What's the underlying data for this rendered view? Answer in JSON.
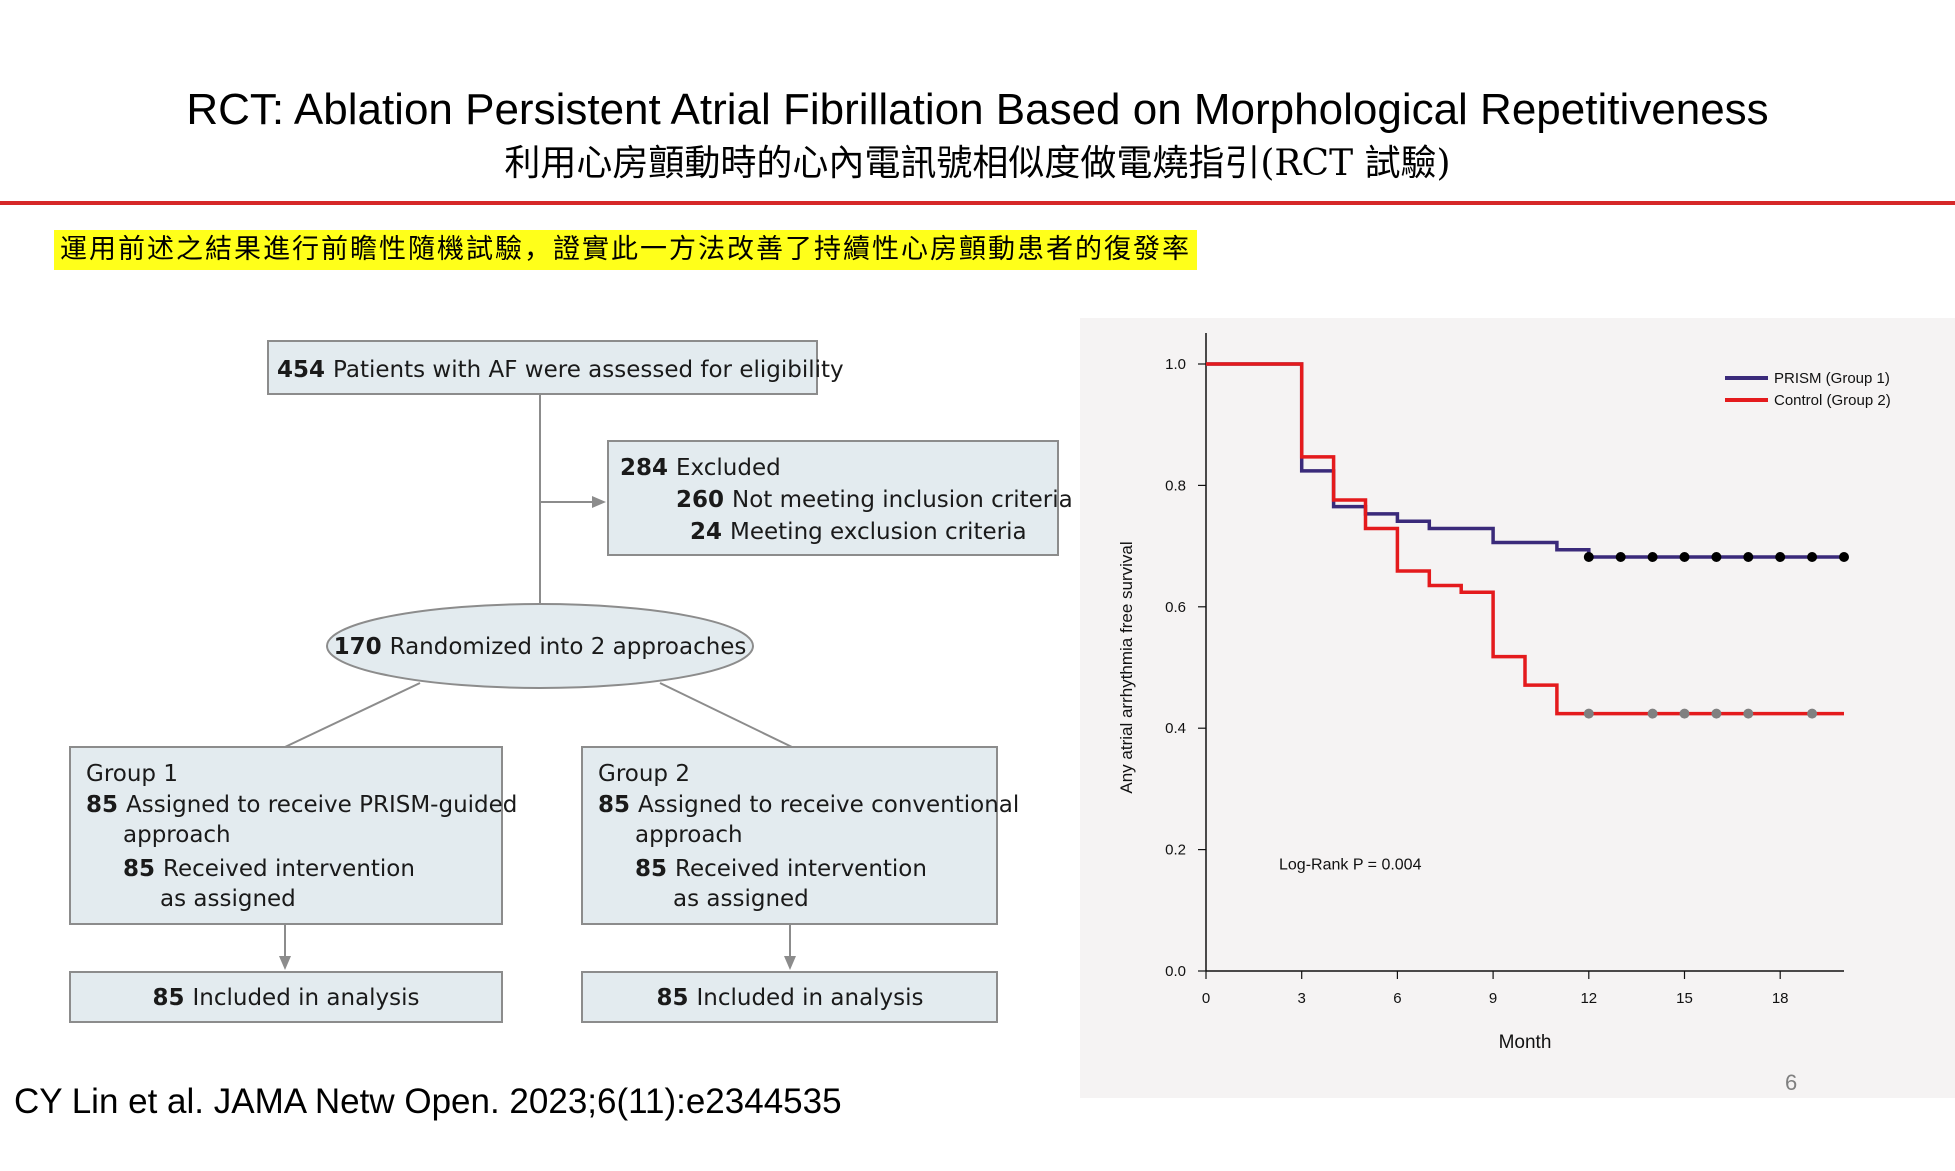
{
  "slide": {
    "title": "RCT: Ablation Persistent Atrial Fibrillation Based on Morphological Repetitiveness",
    "subtitle": "利用心房顫動時的心內電訊號相似度做電燒指引(RCT  試驗)",
    "highlight": "運用前述之結果進行前瞻性隨機試驗，證實此一方法改善了持續性心房顫動患者的復發率",
    "citation": "CY Lin et al. JAMA Netw Open. 2023;6(11):e2344535",
    "page_number": "6",
    "accent_color": "#d62728",
    "highlight_color": "#ffff1a"
  },
  "flowchart": {
    "assessed": {
      "num": "454",
      "text": "Patients with AF were assessed for eligibility"
    },
    "excluded": {
      "num": "284",
      "text": "Excluded"
    },
    "excluded_1": {
      "num": "260",
      "text": "Not meeting inclusion criteria"
    },
    "excluded_2": {
      "num": "24",
      "text": "Meeting exclusion criteria"
    },
    "randomized": {
      "num": "170",
      "text": "Randomized into 2 approaches"
    },
    "group1": {
      "title": "Group 1",
      "assigned_num": "85",
      "assigned_line1": "Assigned to receive PRISM-guided",
      "assigned_line2": "approach",
      "received_num": "85",
      "received_line1": "Received intervention",
      "received_line2": "as assigned",
      "analysis_num": "85",
      "analysis_text": "Included in analysis"
    },
    "group2": {
      "title": "Group 2",
      "assigned_num": "85",
      "assigned_line1": "Assigned to receive conventional",
      "assigned_line2": "approach",
      "received_num": "85",
      "received_line1": "Received intervention",
      "received_line2": "as assigned",
      "analysis_num": "85",
      "analysis_text": "Included in analysis"
    }
  },
  "chart_data": {
    "type": "line",
    "title": "",
    "xlabel": "Month",
    "ylabel": "Any atrial arrhythmia free survival",
    "xlim": [
      0,
      20
    ],
    "ylim": [
      0,
      1.0
    ],
    "x_ticks": [
      "0",
      "3",
      "6",
      "9",
      "12",
      "15",
      "18"
    ],
    "y_ticks": [
      "0.0",
      "0.2",
      "0.4",
      "0.6",
      "0.8",
      "1.0"
    ],
    "annotation": "Log-Rank P = 0.004",
    "grid": false,
    "legend_position": "top-right",
    "series": [
      {
        "name": "PRISM (Group 1)",
        "color": "#3a2a7a",
        "step_points": [
          [
            0,
            1.0
          ],
          [
            3,
            1.0
          ],
          [
            3,
            0.824
          ],
          [
            4,
            0.824
          ],
          [
            4,
            0.765
          ],
          [
            5,
            0.765
          ],
          [
            5,
            0.753
          ],
          [
            6,
            0.753
          ],
          [
            6,
            0.741
          ],
          [
            7,
            0.741
          ],
          [
            7,
            0.729
          ],
          [
            9,
            0.729
          ],
          [
            9,
            0.706
          ],
          [
            11,
            0.706
          ],
          [
            11,
            0.694
          ],
          [
            12,
            0.694
          ],
          [
            12,
            0.682
          ],
          [
            20,
            0.682
          ]
        ],
        "censor_x": [
          12,
          13,
          14,
          15,
          16,
          17,
          18,
          19,
          20
        ],
        "censor_y": 0.682,
        "censor_color": "#000000"
      },
      {
        "name": "Control (Group 2)",
        "color": "#e41a1c",
        "step_points": [
          [
            0,
            1.0
          ],
          [
            3,
            1.0
          ],
          [
            3,
            0.847
          ],
          [
            4,
            0.847
          ],
          [
            4,
            0.776
          ],
          [
            5,
            0.776
          ],
          [
            5,
            0.729
          ],
          [
            6,
            0.729
          ],
          [
            6,
            0.659
          ],
          [
            7,
            0.659
          ],
          [
            7,
            0.635
          ],
          [
            8,
            0.635
          ],
          [
            8,
            0.624
          ],
          [
            9,
            0.624
          ],
          [
            9,
            0.518
          ],
          [
            10,
            0.518
          ],
          [
            10,
            0.471
          ],
          [
            11,
            0.471
          ],
          [
            11,
            0.424
          ],
          [
            20,
            0.424
          ]
        ],
        "censor_x": [
          12,
          14,
          15,
          16,
          17,
          19
        ],
        "censor_y": 0.424,
        "censor_color": "#808080"
      }
    ]
  }
}
